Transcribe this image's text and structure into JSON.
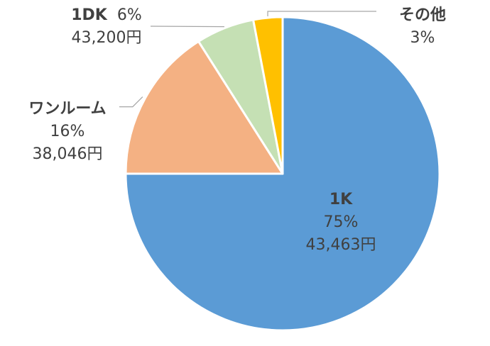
{
  "chart_data": {
    "type": "pie",
    "title": "",
    "start_angle_deg": 0,
    "direction": "clockwise",
    "slices": [
      {
        "name": "1K",
        "percent": 75,
        "percent_label": "75%",
        "value_label": "43,463円",
        "color": "#5B9BD5"
      },
      {
        "name": "ワンルーム",
        "percent": 16,
        "percent_label": "16%",
        "value_label": "38,046円",
        "color": "#F4B183"
      },
      {
        "name": "1DK",
        "percent": 6,
        "percent_label": "6%",
        "value_label": "43,200円",
        "color": "#C5E0B4"
      },
      {
        "name": "その他",
        "percent": 3,
        "percent_label": "3%",
        "value_label": "",
        "color": "#FFC000"
      }
    ]
  }
}
